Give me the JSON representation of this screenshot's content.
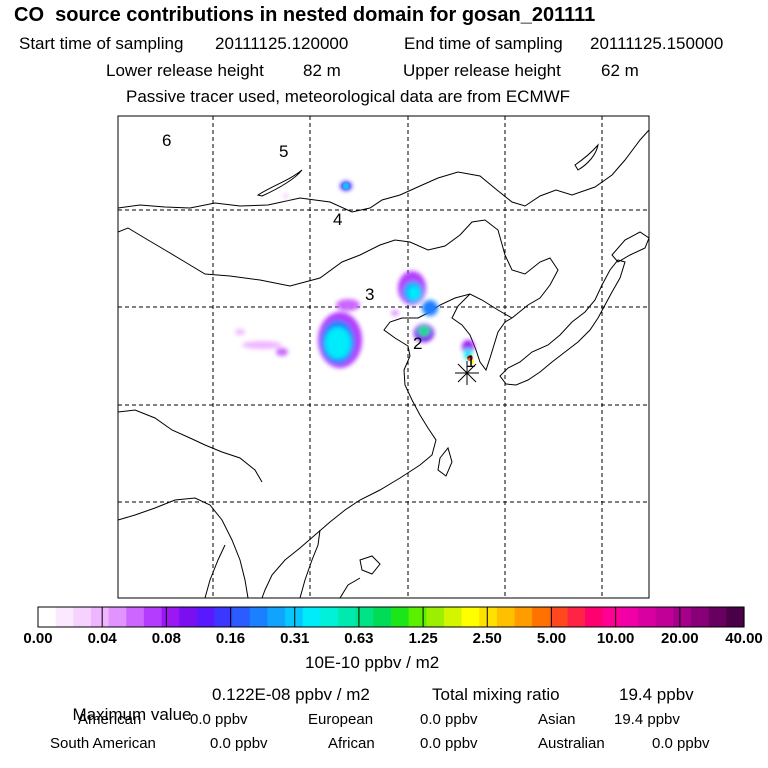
{
  "header": {
    "title": "CO  source contributions in nested domain for gosan_201111",
    "start_label": "Start time of sampling",
    "start_value": "20111125.120000",
    "end_label": "End time of sampling",
    "end_value": "20111125.150000",
    "lower_label": "Lower release height",
    "lower_value": "82 m",
    "upper_label": "Upper release height",
    "upper_value": "62 m",
    "tracer_note": "Passive tracer used, meteorological data are from ECMWF"
  },
  "map": {
    "region_labels": [
      "1",
      "2",
      "3",
      "4",
      "5",
      "6"
    ],
    "receptor_marker": "asterisk-star"
  },
  "colorbar": {
    "tick_labels": [
      "0.00",
      "0.04",
      "0.08",
      "0.16",
      "0.31",
      "0.63",
      "1.25",
      "2.50",
      "5.00",
      "10.00",
      "20.00",
      "40.00"
    ],
    "colors": [
      "#ffffff",
      "#fbe9ff",
      "#f6d2ff",
      "#efb6ff",
      "#e194ff",
      "#cc66ff",
      "#b43cff",
      "#9b18f5",
      "#7a10f0",
      "#5a18ff",
      "#3a38ff",
      "#2a5cff",
      "#1a80ff",
      "#10a4ff",
      "#06c8ff",
      "#00ecfa",
      "#00f0d8",
      "#00eab0",
      "#00e486",
      "#00dc55",
      "#1ae61a",
      "#5af000",
      "#9af000",
      "#d4f500",
      "#ffff00",
      "#ffe100",
      "#ffc000",
      "#ff9c00",
      "#ff7200",
      "#ff4820",
      "#ff2446",
      "#ff0070",
      "#ff0094",
      "#f000a6",
      "#d800a0",
      "#c00096",
      "#a4008a",
      "#880078",
      "#680060",
      "#4a0048"
    ],
    "units": "10E-10 ppbv / m2"
  },
  "stats": {
    "max_label": "Maximum value",
    "max_value": "0.122E-08 ppbv / m2",
    "total_label": "Total mixing ratio",
    "total_value": "19.4 ppbv",
    "regions": [
      {
        "name": "American",
        "value": "0.0 ppbv"
      },
      {
        "name": "European",
        "value": "0.0 ppbv"
      },
      {
        "name": "Asian",
        "value": "19.4 ppbv"
      },
      {
        "name": "South American",
        "value": "0.0 ppbv"
      },
      {
        "name": "African",
        "value": "0.0 ppbv"
      },
      {
        "name": "Australian",
        "value": "0.0 ppbv"
      }
    ]
  }
}
